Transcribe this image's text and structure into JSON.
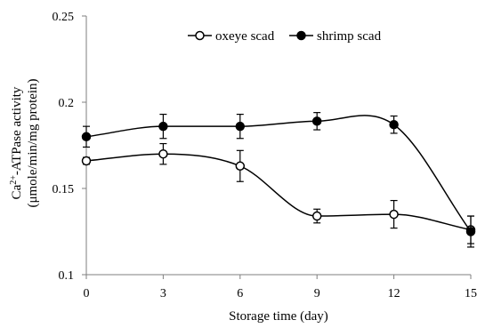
{
  "chart_data": {
    "type": "line",
    "title": "",
    "xlabel": "Storage time (day)",
    "ylabel_lines": [
      [
        "Ca",
        "2+",
        "-ATPase activity"
      ],
      "(μmole/min/mg protein)"
    ],
    "x": [
      0,
      3,
      6,
      9,
      12,
      15
    ],
    "xlim": [
      0,
      15
    ],
    "ylim": [
      0.1,
      0.25
    ],
    "x_ticks": [
      "0",
      "3",
      "6",
      "9",
      "12",
      "15"
    ],
    "y_ticks": [
      "0.1",
      "0.15",
      "0.2",
      "0.25"
    ],
    "legend_position": "top-right",
    "grid": false,
    "smoothed": true,
    "series": [
      {
        "name": "oxeye scad",
        "marker": "open-circle",
        "color": "#000000",
        "values": [
          0.166,
          0.17,
          0.163,
          0.134,
          0.135,
          0.126
        ],
        "error": [
          0.002,
          0.006,
          0.009,
          0.004,
          0.008,
          0.008
        ]
      },
      {
        "name": "shrimp scad",
        "marker": "filled-circle",
        "color": "#000000",
        "values": [
          0.18,
          0.186,
          0.186,
          0.189,
          0.187,
          0.125
        ],
        "error": [
          0.006,
          0.007,
          0.007,
          0.005,
          0.005,
          0.009
        ]
      }
    ]
  }
}
